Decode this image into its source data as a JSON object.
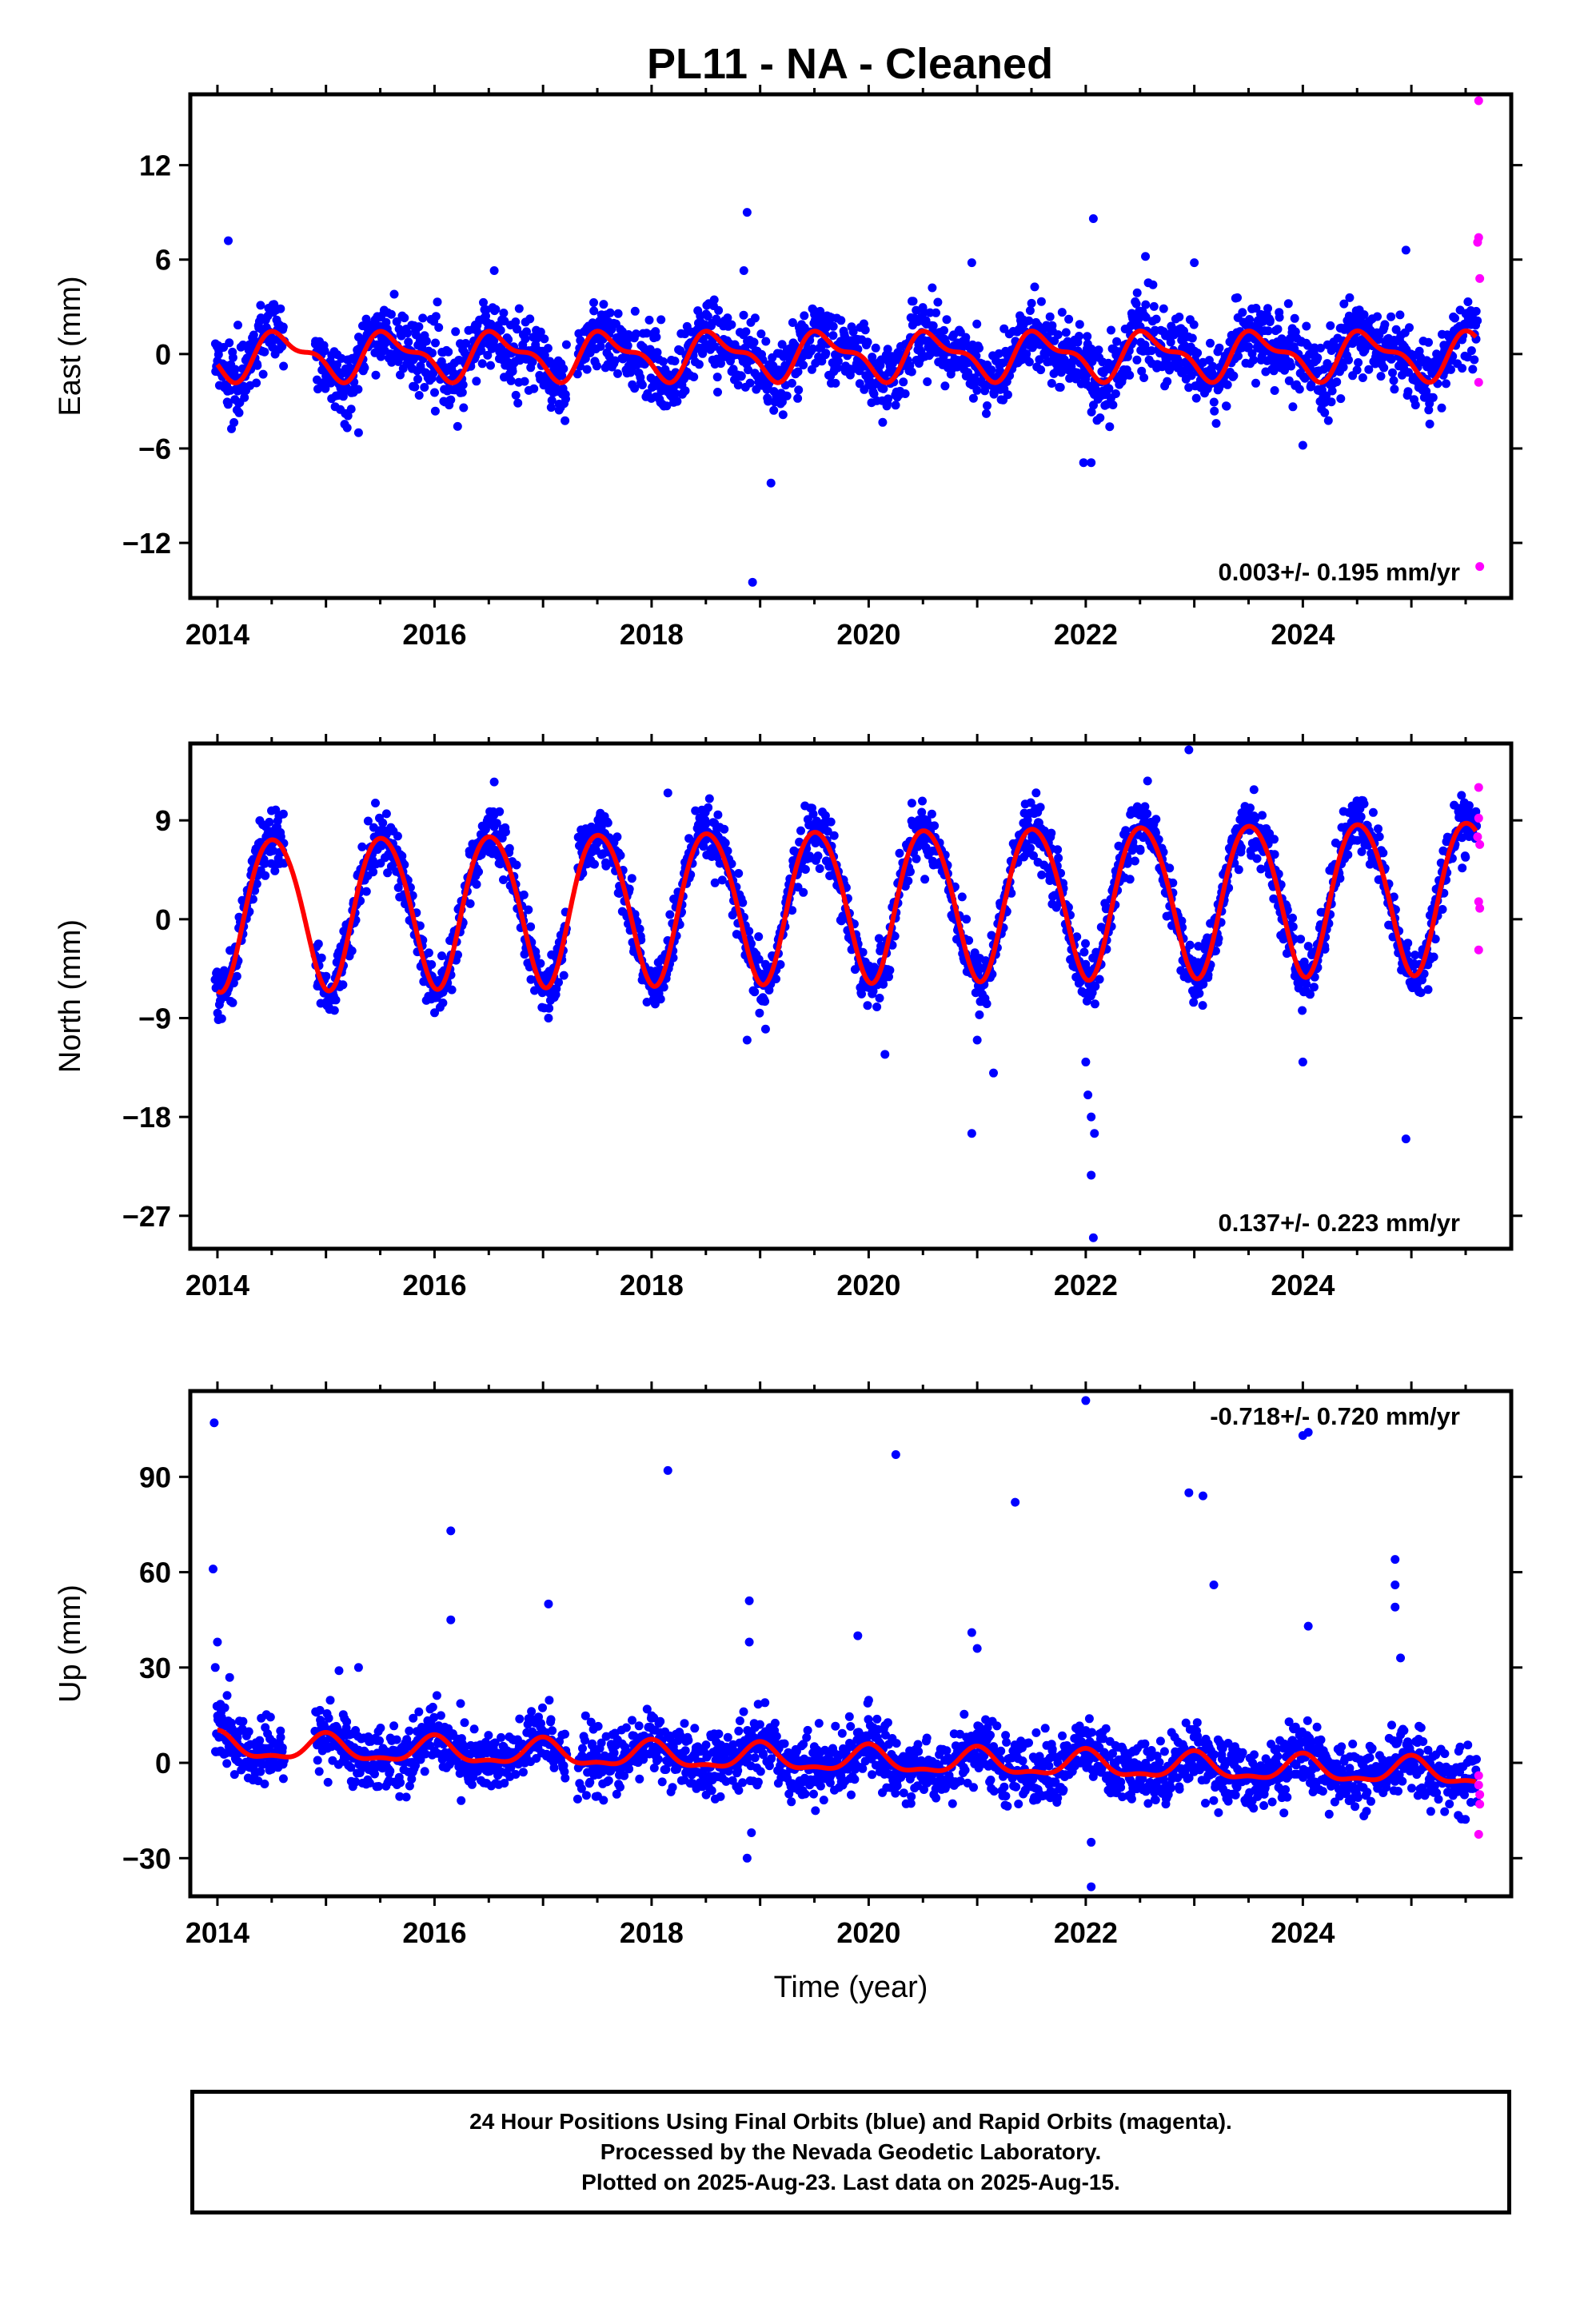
{
  "title": "PL11  - NA - Cleaned",
  "colors": {
    "final": "#0000ff",
    "rapid": "#ff00ff",
    "model": "#ff0000",
    "frame": "#000000"
  },
  "footer": {
    "line1": "24 Hour Positions Using Final Orbits (blue) and Rapid Orbits (magenta).",
    "line2": "Processed by the Nevada Geodetic Laboratory.",
    "line3": "Plotted on 2025-Aug-23. Last data on 2025-Aug-15."
  },
  "chart_data": [
    {
      "type": "scatter",
      "component": "east",
      "ylabel": "East (mm)",
      "xlabel": "",
      "xlim": [
        2013.75,
        2025.92
      ],
      "ylim": [
        -15.5,
        16.5
      ],
      "xticks": [
        2014,
        2016,
        2018,
        2020,
        2022,
        2024
      ],
      "yticks": [
        -12,
        -6,
        0,
        6,
        12
      ],
      "velocity": "0.003+/- 0.195 mm/yr",
      "velocity_position": "bottom-right",
      "model": {
        "start": 2014.0,
        "end": 2025.6,
        "mean": -0.1,
        "trend": 0.003,
        "annual_amp": 1.3,
        "annual_peak": 2014.6,
        "semiannual_amp": 0.6,
        "semiannual_peak": 2014.45
      },
      "scatter_sd": 1.1,
      "outliers": [
        [
          2014.1,
          7.2
        ],
        [
          2018.88,
          9.0
        ],
        [
          2018.85,
          5.3
        ],
        [
          2018.93,
          -14.5
        ],
        [
          2019.1,
          -8.2
        ],
        [
          2021.98,
          -6.9
        ],
        [
          2022.05,
          -6.9
        ],
        [
          2022.07,
          8.6
        ],
        [
          2020.95,
          5.8
        ],
        [
          2022.55,
          6.2
        ],
        [
          2016.55,
          5.3
        ],
        [
          2015.3,
          -5.0
        ],
        [
          2024.95,
          6.6
        ],
        [
          2023.0,
          5.8
        ],
        [
          2024.0,
          -5.8
        ]
      ],
      "rapid": [
        [
          2025.62,
          16.2
        ],
        [
          2025.62,
          7.4
        ],
        [
          2025.63,
          4.8
        ],
        [
          2025.62,
          -1.8
        ],
        [
          2025.63,
          -13.5
        ],
        [
          2025.61,
          7.1
        ]
      ]
    },
    {
      "type": "scatter",
      "component": "north",
      "ylabel": "North (mm)",
      "xlabel": "",
      "xlim": [
        2013.75,
        2025.92
      ],
      "ylim": [
        -30.0,
        16.0
      ],
      "xticks": [
        2014,
        2016,
        2018,
        2020,
        2022,
        2024
      ],
      "yticks": [
        -27,
        -18,
        -9,
        0,
        9
      ],
      "velocity": "0.137+/- 0.223 mm/yr",
      "velocity_position": "bottom-right",
      "model": {
        "start": 2014.0,
        "end": 2025.6,
        "mean": 0.8,
        "trend": 0.137,
        "annual_amp": 6.9,
        "annual_peak": 2014.52,
        "semiannual_amp": 0.6,
        "semiannual_peak": 2014.3
      },
      "scatter_sd": 1.3,
      "outliers": [
        [
          2022.95,
          15.8
        ],
        [
          2018.15,
          11.5
        ],
        [
          2016.55,
          12.5
        ],
        [
          2023.55,
          11.8
        ],
        [
          2020.95,
          -19.5
        ],
        [
          2022.05,
          -23.3
        ],
        [
          2022.07,
          -29.0
        ],
        [
          2022.0,
          -13.0
        ],
        [
          2022.05,
          -18.0
        ],
        [
          2022.08,
          -19.5
        ],
        [
          2022.02,
          -16.0
        ],
        [
          2024.95,
          -20.0
        ],
        [
          2021.15,
          -14.0
        ],
        [
          2024.0,
          -13.0
        ],
        [
          2018.88,
          -11.0
        ],
        [
          2019.05,
          -10.0
        ],
        [
          2017.05,
          -9.0
        ],
        [
          2020.15,
          -12.3
        ],
        [
          2021.0,
          -11.0
        ]
      ],
      "rapid": [
        [
          2025.62,
          12.0
        ],
        [
          2025.62,
          9.2
        ],
        [
          2025.63,
          6.8
        ],
        [
          2025.62,
          1.6
        ],
        [
          2025.63,
          1.0
        ],
        [
          2025.62,
          -2.8
        ],
        [
          2025.61,
          7.5
        ]
      ]
    },
    {
      "type": "scatter",
      "component": "up",
      "ylabel": "Up (mm)",
      "xlabel": "Time (year)",
      "xlim": [
        2013.75,
        2025.92
      ],
      "ylim": [
        -42.0,
        117.0
      ],
      "xticks": [
        2014,
        2016,
        2018,
        2020,
        2022,
        2024
      ],
      "yticks": [
        -30,
        0,
        30,
        60,
        90
      ],
      "velocity": "-0.718+/- 0.720 mm/yr",
      "velocity_position": "top-right",
      "model": {
        "start": 2014.0,
        "end": 2025.6,
        "mean": 5.0,
        "trend": -0.718,
        "annual_amp": 3.8,
        "annual_peak": 2014.0,
        "semiannual_amp": 1.5,
        "semiannual_peak": 2014.0
      },
      "scatter_sd": 5.0,
      "outliers": [
        [
          2013.97,
          107.0
        ],
        [
          2013.96,
          61.0
        ],
        [
          2016.15,
          73.0
        ],
        [
          2016.15,
          45.0
        ],
        [
          2017.05,
          50.0
        ],
        [
          2018.15,
          92.0
        ],
        [
          2018.9,
          51.0
        ],
        [
          2018.9,
          38.0
        ],
        [
          2018.88,
          -30.0
        ],
        [
          2018.92,
          -22.0
        ],
        [
          2020.25,
          97.0
        ],
        [
          2021.35,
          82.0
        ],
        [
          2022.0,
          114.0
        ],
        [
          2022.05,
          -39.0
        ],
        [
          2022.05,
          -25.0
        ],
        [
          2022.95,
          85.0
        ],
        [
          2023.08,
          84.0
        ],
        [
          2023.18,
          56.0
        ],
        [
          2024.0,
          103.0
        ],
        [
          2024.05,
          104.0
        ],
        [
          2024.05,
          43.0
        ],
        [
          2024.85,
          64.0
        ],
        [
          2024.85,
          56.0
        ],
        [
          2024.85,
          49.0
        ],
        [
          2024.9,
          33.0
        ],
        [
          2014.0,
          38.0
        ],
        [
          2015.3,
          30.0
        ],
        [
          2015.12,
          29.0
        ],
        [
          2019.9,
          40.0
        ],
        [
          2020.95,
          41.0
        ],
        [
          2021.0,
          36.0
        ],
        [
          2020.6,
          -10.0
        ],
        [
          2013.98,
          30.0
        ]
      ],
      "rapid": [
        [
          2025.62,
          -4.0
        ],
        [
          2025.62,
          -7.0
        ],
        [
          2025.63,
          -13.0
        ],
        [
          2025.62,
          -22.5
        ],
        [
          2025.63,
          -10.0
        ]
      ]
    }
  ]
}
